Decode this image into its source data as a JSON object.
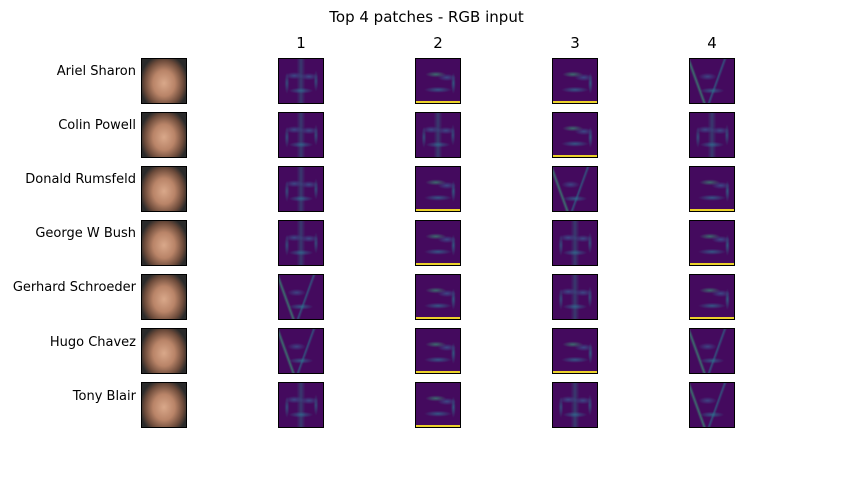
{
  "title": "Top 4 patches - RGB input",
  "columns": [
    "1",
    "2",
    "3",
    "4"
  ],
  "rows": [
    {
      "name": "Ariel Sharon"
    },
    {
      "name": "Colin Powell"
    },
    {
      "name": "Donald Rumsfeld"
    },
    {
      "name": "George W Bush"
    },
    {
      "name": "Gerhard Schroeder"
    },
    {
      "name": "Hugo Chavez"
    },
    {
      "name": "Tony Blair"
    }
  ]
}
